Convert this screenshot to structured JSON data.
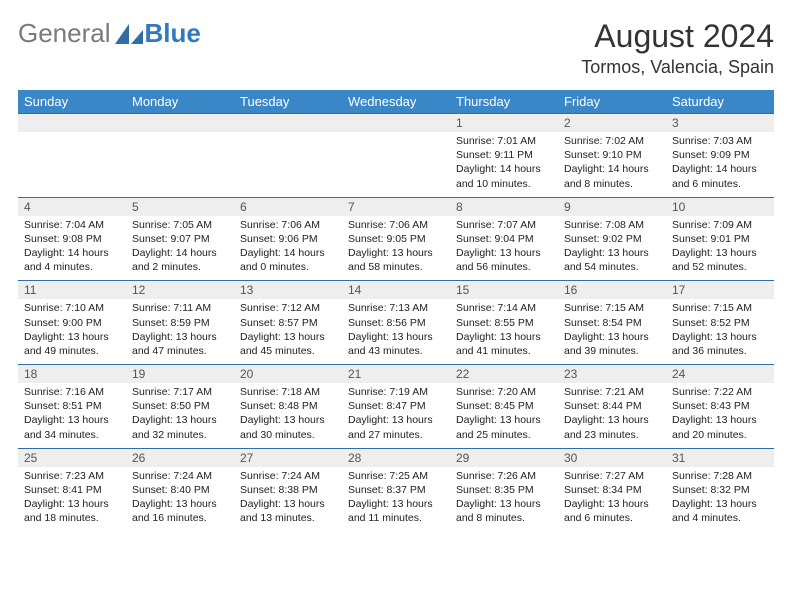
{
  "logo": {
    "word1": "General",
    "word2": "Blue",
    "icon_color": "#2f6fa3"
  },
  "title": "August 2024",
  "location": "Tormos, Valencia, Spain",
  "colors": {
    "header_bg": "#3a87c8",
    "header_fg": "#ffffff",
    "daynum_bg": "#eeeeee",
    "daynum_fg": "#555555",
    "rule": "#2f6fa3",
    "text": "#222222",
    "title": "#333333",
    "logo_general": "#7a7a7a",
    "logo_blue": "#2f7bbf"
  },
  "dow": [
    "Sunday",
    "Monday",
    "Tuesday",
    "Wednesday",
    "Thursday",
    "Friday",
    "Saturday"
  ],
  "weeks": [
    [
      null,
      null,
      null,
      null,
      {
        "n": "1",
        "sr": "7:01 AM",
        "ss": "9:11 PM",
        "dl": "14 hours and 10 minutes."
      },
      {
        "n": "2",
        "sr": "7:02 AM",
        "ss": "9:10 PM",
        "dl": "14 hours and 8 minutes."
      },
      {
        "n": "3",
        "sr": "7:03 AM",
        "ss": "9:09 PM",
        "dl": "14 hours and 6 minutes."
      }
    ],
    [
      {
        "n": "4",
        "sr": "7:04 AM",
        "ss": "9:08 PM",
        "dl": "14 hours and 4 minutes."
      },
      {
        "n": "5",
        "sr": "7:05 AM",
        "ss": "9:07 PM",
        "dl": "14 hours and 2 minutes."
      },
      {
        "n": "6",
        "sr": "7:06 AM",
        "ss": "9:06 PM",
        "dl": "14 hours and 0 minutes."
      },
      {
        "n": "7",
        "sr": "7:06 AM",
        "ss": "9:05 PM",
        "dl": "13 hours and 58 minutes."
      },
      {
        "n": "8",
        "sr": "7:07 AM",
        "ss": "9:04 PM",
        "dl": "13 hours and 56 minutes."
      },
      {
        "n": "9",
        "sr": "7:08 AM",
        "ss": "9:02 PM",
        "dl": "13 hours and 54 minutes."
      },
      {
        "n": "10",
        "sr": "7:09 AM",
        "ss": "9:01 PM",
        "dl": "13 hours and 52 minutes."
      }
    ],
    [
      {
        "n": "11",
        "sr": "7:10 AM",
        "ss": "9:00 PM",
        "dl": "13 hours and 49 minutes."
      },
      {
        "n": "12",
        "sr": "7:11 AM",
        "ss": "8:59 PM",
        "dl": "13 hours and 47 minutes."
      },
      {
        "n": "13",
        "sr": "7:12 AM",
        "ss": "8:57 PM",
        "dl": "13 hours and 45 minutes."
      },
      {
        "n": "14",
        "sr": "7:13 AM",
        "ss": "8:56 PM",
        "dl": "13 hours and 43 minutes."
      },
      {
        "n": "15",
        "sr": "7:14 AM",
        "ss": "8:55 PM",
        "dl": "13 hours and 41 minutes."
      },
      {
        "n": "16",
        "sr": "7:15 AM",
        "ss": "8:54 PM",
        "dl": "13 hours and 39 minutes."
      },
      {
        "n": "17",
        "sr": "7:15 AM",
        "ss": "8:52 PM",
        "dl": "13 hours and 36 minutes."
      }
    ],
    [
      {
        "n": "18",
        "sr": "7:16 AM",
        "ss": "8:51 PM",
        "dl": "13 hours and 34 minutes."
      },
      {
        "n": "19",
        "sr": "7:17 AM",
        "ss": "8:50 PM",
        "dl": "13 hours and 32 minutes."
      },
      {
        "n": "20",
        "sr": "7:18 AM",
        "ss": "8:48 PM",
        "dl": "13 hours and 30 minutes."
      },
      {
        "n": "21",
        "sr": "7:19 AM",
        "ss": "8:47 PM",
        "dl": "13 hours and 27 minutes."
      },
      {
        "n": "22",
        "sr": "7:20 AM",
        "ss": "8:45 PM",
        "dl": "13 hours and 25 minutes."
      },
      {
        "n": "23",
        "sr": "7:21 AM",
        "ss": "8:44 PM",
        "dl": "13 hours and 23 minutes."
      },
      {
        "n": "24",
        "sr": "7:22 AM",
        "ss": "8:43 PM",
        "dl": "13 hours and 20 minutes."
      }
    ],
    [
      {
        "n": "25",
        "sr": "7:23 AM",
        "ss": "8:41 PM",
        "dl": "13 hours and 18 minutes."
      },
      {
        "n": "26",
        "sr": "7:24 AM",
        "ss": "8:40 PM",
        "dl": "13 hours and 16 minutes."
      },
      {
        "n": "27",
        "sr": "7:24 AM",
        "ss": "8:38 PM",
        "dl": "13 hours and 13 minutes."
      },
      {
        "n": "28",
        "sr": "7:25 AM",
        "ss": "8:37 PM",
        "dl": "13 hours and 11 minutes."
      },
      {
        "n": "29",
        "sr": "7:26 AM",
        "ss": "8:35 PM",
        "dl": "13 hours and 8 minutes."
      },
      {
        "n": "30",
        "sr": "7:27 AM",
        "ss": "8:34 PM",
        "dl": "13 hours and 6 minutes."
      },
      {
        "n": "31",
        "sr": "7:28 AM",
        "ss": "8:32 PM",
        "dl": "13 hours and 4 minutes."
      }
    ]
  ],
  "labels": {
    "sunrise": "Sunrise:",
    "sunset": "Sunset:",
    "daylight": "Daylight:"
  }
}
